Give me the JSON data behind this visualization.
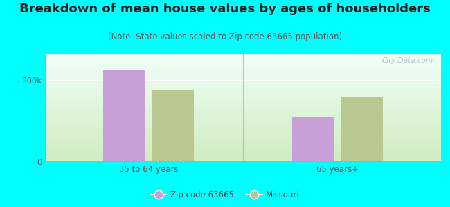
{
  "title": "Breakdown of mean house values by ages of householders",
  "subtitle": "(Note: State values scaled to Zip code 63665 population)",
  "categories": [
    "35 to 64 years",
    "65 years+"
  ],
  "zip_values": [
    225000,
    110000
  ],
  "state_values": [
    175000,
    158000
  ],
  "zip_color": "#c8a0d8",
  "state_color": "#b8c890",
  "background_color": "#00ffff",
  "grad_top": "#f0fff8",
  "grad_bottom": "#d0ecc0",
  "ylim": [
    0,
    265000
  ],
  "yticks": [
    0,
    200000
  ],
  "ytick_labels": [
    "0",
    "200k"
  ],
  "legend_zip_label": "Zip code 63665",
  "legend_state_label": "Missouri",
  "watermark": "City-Data.com",
  "title_fontsize": 13,
  "subtitle_fontsize": 8.5,
  "axis_color": "#aaaaaa",
  "tick_color": "#555555",
  "bar_width": 0.22,
  "bar_gap": 0.04
}
